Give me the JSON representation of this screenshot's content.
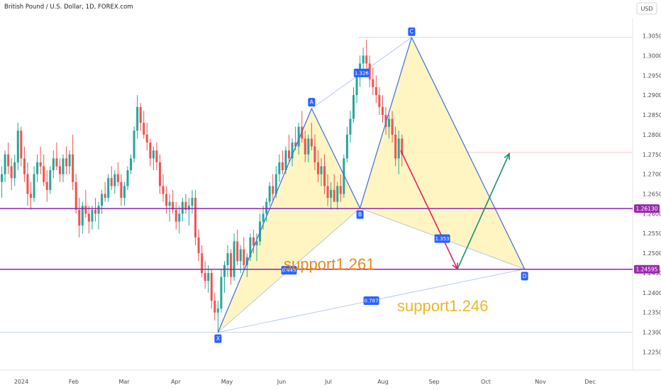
{
  "header": {
    "title": "British Pound / U.S. Dollar, 1D, FOREX.com",
    "currency": "USD"
  },
  "colors": {
    "up": "#26a69a",
    "down": "#ef5350",
    "pattern_line": "#3b6fd6",
    "pattern_fill": "#fff3b8",
    "label_bg": "#2962ff",
    "support_line": "#8e24aa",
    "support_tag": "#9c27b0",
    "arrow_down": "#e91e63",
    "arrow_up": "#1a8f6e",
    "annotation_orange": "#e8891c",
    "annotation_yellow": "#ecb62a"
  },
  "chart_data": {
    "type": "candlestick",
    "x_tick_labels": [
      "2024",
      "Feb",
      "Mar",
      "Apr",
      "May",
      "Jun",
      "Jul",
      "Aug",
      "Sep",
      "Oct",
      "Nov",
      "Dec"
    ],
    "y_tick_labels": [
      "1.30500",
      "1.30000",
      "1.29500",
      "1.29000",
      "1.28500",
      "1.28000",
      "1.27500",
      "1.27000",
      "1.26500",
      "1.26000",
      "1.25500",
      "1.25000",
      "1.24500",
      "1.24000",
      "1.23500",
      "1.23000",
      "1.22500"
    ],
    "ylim": [
      1.2215,
      1.3085
    ],
    "ohlc_daily": [
      [
        1.273,
        1.276,
        1.265,
        1.268
      ],
      [
        1.268,
        1.272,
        1.264,
        1.27
      ],
      [
        1.27,
        1.276,
        1.268,
        1.275
      ],
      [
        1.275,
        1.278,
        1.27,
        1.272
      ],
      [
        1.272,
        1.274,
        1.266,
        1.269
      ],
      [
        1.269,
        1.275,
        1.267,
        1.273
      ],
      [
        1.273,
        1.283,
        1.271,
        1.281
      ],
      [
        1.281,
        1.282,
        1.272,
        1.274
      ],
      [
        1.274,
        1.277,
        1.268,
        1.27
      ],
      [
        1.27,
        1.273,
        1.262,
        1.265
      ],
      [
        1.265,
        1.268,
        1.261,
        1.264
      ],
      [
        1.264,
        1.272,
        1.263,
        1.27
      ],
      [
        1.27,
        1.275,
        1.268,
        1.273
      ],
      [
        1.273,
        1.277,
        1.27,
        1.272
      ],
      [
        1.272,
        1.275,
        1.267,
        1.268
      ],
      [
        1.268,
        1.271,
        1.263,
        1.266
      ],
      [
        1.266,
        1.272,
        1.265,
        1.271
      ],
      [
        1.271,
        1.276,
        1.269,
        1.274
      ],
      [
        1.274,
        1.278,
        1.271,
        1.272
      ],
      [
        1.272,
        1.274,
        1.268,
        1.27
      ],
      [
        1.27,
        1.275,
        1.268,
        1.274
      ],
      [
        1.274,
        1.277,
        1.27,
        1.272
      ],
      [
        1.272,
        1.276,
        1.27,
        1.275
      ],
      [
        1.275,
        1.28,
        1.266,
        1.268
      ],
      [
        1.268,
        1.27,
        1.26,
        1.261
      ],
      [
        1.261,
        1.264,
        1.254,
        1.257
      ],
      [
        1.257,
        1.263,
        1.255,
        1.262
      ],
      [
        1.262,
        1.266,
        1.259,
        1.26
      ],
      [
        1.26,
        1.262,
        1.255,
        1.258
      ],
      [
        1.258,
        1.262,
        1.256,
        1.261
      ],
      [
        1.261,
        1.264,
        1.258,
        1.26
      ],
      [
        1.26,
        1.263,
        1.256,
        1.262
      ],
      [
        1.262,
        1.266,
        1.26,
        1.265
      ],
      [
        1.265,
        1.268,
        1.263,
        1.264
      ],
      [
        1.264,
        1.27,
        1.263,
        1.269
      ],
      [
        1.269,
        1.272,
        1.266,
        1.267
      ],
      [
        1.267,
        1.271,
        1.265,
        1.27
      ],
      [
        1.27,
        1.273,
        1.267,
        1.268
      ],
      [
        1.268,
        1.27,
        1.262,
        1.264
      ],
      [
        1.264,
        1.268,
        1.262,
        1.267
      ],
      [
        1.267,
        1.272,
        1.266,
        1.271
      ],
      [
        1.271,
        1.275,
        1.27,
        1.274
      ],
      [
        1.274,
        1.282,
        1.273,
        1.281
      ],
      [
        1.281,
        1.29,
        1.279,
        1.287
      ],
      [
        1.287,
        1.288,
        1.281,
        1.283
      ],
      [
        1.283,
        1.286,
        1.279,
        1.28
      ],
      [
        1.28,
        1.283,
        1.276,
        1.278
      ],
      [
        1.278,
        1.279,
        1.272,
        1.274
      ],
      [
        1.274,
        1.277,
        1.271,
        1.276
      ],
      [
        1.276,
        1.278,
        1.271,
        1.273
      ],
      [
        1.273,
        1.275,
        1.265,
        1.267
      ],
      [
        1.267,
        1.27,
        1.263,
        1.265
      ],
      [
        1.265,
        1.267,
        1.26,
        1.262
      ],
      [
        1.262,
        1.265,
        1.258,
        1.263
      ],
      [
        1.263,
        1.266,
        1.26,
        1.261
      ],
      [
        1.261,
        1.263,
        1.256,
        1.258
      ],
      [
        1.258,
        1.262,
        1.255,
        1.26
      ],
      [
        1.26,
        1.264,
        1.258,
        1.263
      ],
      [
        1.263,
        1.265,
        1.26,
        1.261
      ],
      [
        1.261,
        1.264,
        1.257,
        1.262
      ],
      [
        1.262,
        1.266,
        1.26,
        1.264
      ],
      [
        1.264,
        1.266,
        1.252,
        1.254
      ],
      [
        1.254,
        1.256,
        1.248,
        1.25
      ],
      [
        1.25,
        1.252,
        1.244,
        1.245
      ],
      [
        1.245,
        1.248,
        1.241,
        1.243
      ],
      [
        1.243,
        1.247,
        1.24,
        1.245
      ],
      [
        1.245,
        1.246,
        1.236,
        1.238
      ],
      [
        1.238,
        1.24,
        1.233,
        1.235
      ],
      [
        1.235,
        1.238,
        1.23,
        1.236
      ],
      [
        1.236,
        1.246,
        1.235,
        1.244
      ],
      [
        1.244,
        1.248,
        1.24,
        1.247
      ],
      [
        1.247,
        1.252,
        1.244,
        1.25
      ],
      [
        1.25,
        1.251,
        1.242,
        1.244
      ],
      [
        1.244,
        1.255,
        1.243,
        1.253
      ],
      [
        1.253,
        1.256,
        1.247,
        1.248
      ],
      [
        1.248,
        1.252,
        1.245,
        1.251
      ],
      [
        1.251,
        1.254,
        1.246,
        1.247
      ],
      [
        1.247,
        1.25,
        1.244,
        1.249
      ],
      [
        1.249,
        1.255,
        1.248,
        1.254
      ],
      [
        1.254,
        1.256,
        1.25,
        1.252
      ],
      [
        1.252,
        1.255,
        1.248,
        1.253
      ],
      [
        1.253,
        1.26,
        1.252,
        1.258
      ],
      [
        1.258,
        1.262,
        1.256,
        1.26
      ],
      [
        1.26,
        1.264,
        1.258,
        1.263
      ],
      [
        1.263,
        1.268,
        1.262,
        1.267
      ],
      [
        1.267,
        1.27,
        1.263,
        1.265
      ],
      [
        1.265,
        1.272,
        1.264,
        1.27
      ],
      [
        1.27,
        1.275,
        1.268,
        1.273
      ],
      [
        1.273,
        1.276,
        1.27,
        1.271
      ],
      [
        1.271,
        1.277,
        1.27,
        1.276
      ],
      [
        1.276,
        1.28,
        1.273,
        1.274
      ],
      [
        1.274,
        1.279,
        1.272,
        1.278
      ],
      [
        1.278,
        1.282,
        1.276,
        1.277
      ],
      [
        1.277,
        1.283,
        1.275,
        1.282
      ],
      [
        1.282,
        1.286,
        1.278,
        1.279
      ],
      [
        1.279,
        1.281,
        1.273,
        1.275
      ],
      [
        1.275,
        1.28,
        1.273,
        1.279
      ],
      [
        1.279,
        1.283,
        1.276,
        1.277
      ],
      [
        1.277,
        1.28,
        1.271,
        1.273
      ],
      [
        1.273,
        1.276,
        1.268,
        1.27
      ],
      [
        1.27,
        1.274,
        1.267,
        1.272
      ],
      [
        1.272,
        1.275,
        1.265,
        1.267
      ],
      [
        1.267,
        1.27,
        1.262,
        1.264
      ],
      [
        1.264,
        1.268,
        1.261,
        1.266
      ],
      [
        1.266,
        1.27,
        1.264,
        1.263
      ],
      [
        1.263,
        1.268,
        1.261,
        1.267
      ],
      [
        1.267,
        1.27,
        1.263,
        1.265
      ],
      [
        1.265,
        1.275,
        1.264,
        1.274
      ],
      [
        1.274,
        1.282,
        1.273,
        1.28
      ],
      [
        1.28,
        1.286,
        1.278,
        1.284
      ],
      [
        1.284,
        1.292,
        1.283,
        1.29
      ],
      [
        1.29,
        1.296,
        1.288,
        1.295
      ],
      [
        1.295,
        1.3,
        1.292,
        1.298
      ],
      [
        1.298,
        1.302,
        1.295,
        1.3
      ],
      [
        1.3,
        1.304,
        1.296,
        1.298
      ],
      [
        1.298,
        1.3,
        1.292,
        1.294
      ],
      [
        1.294,
        1.297,
        1.29,
        1.292
      ],
      [
        1.292,
        1.295,
        1.288,
        1.29
      ],
      [
        1.29,
        1.292,
        1.285,
        1.287
      ],
      [
        1.287,
        1.29,
        1.283,
        1.285
      ],
      [
        1.285,
        1.287,
        1.28,
        1.282
      ],
      [
        1.282,
        1.285,
        1.279,
        1.284
      ],
      [
        1.284,
        1.286,
        1.278,
        1.28
      ],
      [
        1.28,
        1.282,
        1.272,
        1.274
      ],
      [
        1.274,
        1.281,
        1.27,
        1.279
      ],
      [
        1.279,
        1.28,
        1.272,
        1.275
      ]
    ],
    "pattern": {
      "name": "harmonic XABCD",
      "points": [
        {
          "label": "X",
          "date_index": 68,
          "price": 1.23
        },
        {
          "label": "A",
          "date_index": 97,
          "price": 1.2866
        },
        {
          "label": "B",
          "date_index": 112,
          "price": 1.2614
        },
        {
          "label": "C",
          "date_index": 128,
          "price": 1.3046
        },
        {
          "label": "D",
          "date_index": 163,
          "price": 1.246
        }
      ],
      "ratios": [
        "1.326",
        "1.353",
        "0.445",
        "0.787"
      ]
    },
    "support_levels": [
      {
        "price_label": "1.26130",
        "annotation": "support1.261"
      },
      {
        "price_label": "1.24595",
        "annotation": "support1.246"
      }
    ],
    "reference_lines": {
      "top_price": 1.3046,
      "mid_price": 1.2755,
      "bottom_price": 1.23
    },
    "projection": {
      "down_to_price": 1.246,
      "up_to_price": 1.2752
    }
  }
}
